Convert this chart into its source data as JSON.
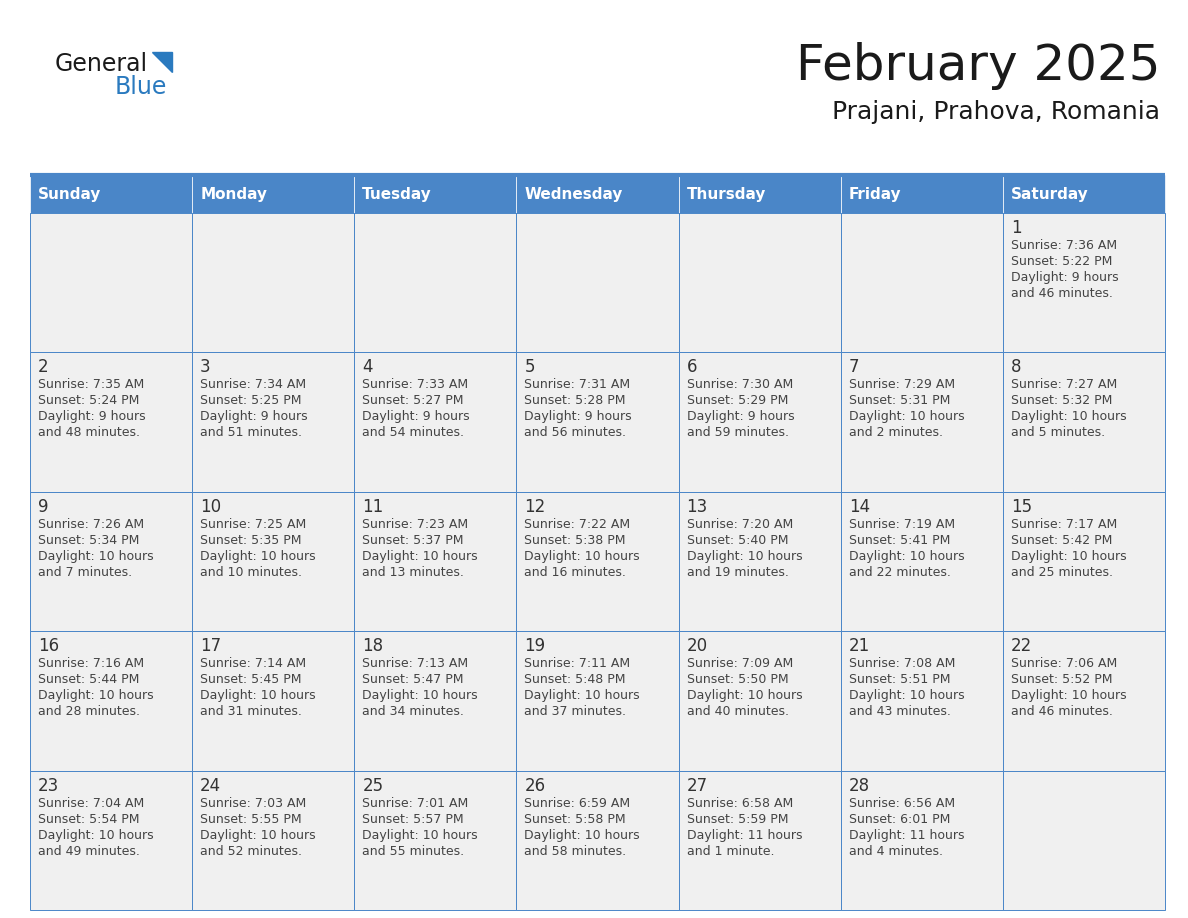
{
  "title": "February 2025",
  "subtitle": "Prajani, Prahova, Romania",
  "header_bg": "#4a86c8",
  "header_text": "#ffffff",
  "cell_bg": "#f0f0f0",
  "cell_border": "#4a86c8",
  "day_headers": [
    "Sunday",
    "Monday",
    "Tuesday",
    "Wednesday",
    "Thursday",
    "Friday",
    "Saturday"
  ],
  "days": [
    {
      "date": 1,
      "col": 6,
      "row": 0,
      "sunrise": "7:36 AM",
      "sunset": "5:22 PM",
      "daylight": "9 hours\nand 46 minutes."
    },
    {
      "date": 2,
      "col": 0,
      "row": 1,
      "sunrise": "7:35 AM",
      "sunset": "5:24 PM",
      "daylight": "9 hours\nand 48 minutes."
    },
    {
      "date": 3,
      "col": 1,
      "row": 1,
      "sunrise": "7:34 AM",
      "sunset": "5:25 PM",
      "daylight": "9 hours\nand 51 minutes."
    },
    {
      "date": 4,
      "col": 2,
      "row": 1,
      "sunrise": "7:33 AM",
      "sunset": "5:27 PM",
      "daylight": "9 hours\nand 54 minutes."
    },
    {
      "date": 5,
      "col": 3,
      "row": 1,
      "sunrise": "7:31 AM",
      "sunset": "5:28 PM",
      "daylight": "9 hours\nand 56 minutes."
    },
    {
      "date": 6,
      "col": 4,
      "row": 1,
      "sunrise": "7:30 AM",
      "sunset": "5:29 PM",
      "daylight": "9 hours\nand 59 minutes."
    },
    {
      "date": 7,
      "col": 5,
      "row": 1,
      "sunrise": "7:29 AM",
      "sunset": "5:31 PM",
      "daylight": "10 hours\nand 2 minutes."
    },
    {
      "date": 8,
      "col": 6,
      "row": 1,
      "sunrise": "7:27 AM",
      "sunset": "5:32 PM",
      "daylight": "10 hours\nand 5 minutes."
    },
    {
      "date": 9,
      "col": 0,
      "row": 2,
      "sunrise": "7:26 AM",
      "sunset": "5:34 PM",
      "daylight": "10 hours\nand 7 minutes."
    },
    {
      "date": 10,
      "col": 1,
      "row": 2,
      "sunrise": "7:25 AM",
      "sunset": "5:35 PM",
      "daylight": "10 hours\nand 10 minutes."
    },
    {
      "date": 11,
      "col": 2,
      "row": 2,
      "sunrise": "7:23 AM",
      "sunset": "5:37 PM",
      "daylight": "10 hours\nand 13 minutes."
    },
    {
      "date": 12,
      "col": 3,
      "row": 2,
      "sunrise": "7:22 AM",
      "sunset": "5:38 PM",
      "daylight": "10 hours\nand 16 minutes."
    },
    {
      "date": 13,
      "col": 4,
      "row": 2,
      "sunrise": "7:20 AM",
      "sunset": "5:40 PM",
      "daylight": "10 hours\nand 19 minutes."
    },
    {
      "date": 14,
      "col": 5,
      "row": 2,
      "sunrise": "7:19 AM",
      "sunset": "5:41 PM",
      "daylight": "10 hours\nand 22 minutes."
    },
    {
      "date": 15,
      "col": 6,
      "row": 2,
      "sunrise": "7:17 AM",
      "sunset": "5:42 PM",
      "daylight": "10 hours\nand 25 minutes."
    },
    {
      "date": 16,
      "col": 0,
      "row": 3,
      "sunrise": "7:16 AM",
      "sunset": "5:44 PM",
      "daylight": "10 hours\nand 28 minutes."
    },
    {
      "date": 17,
      "col": 1,
      "row": 3,
      "sunrise": "7:14 AM",
      "sunset": "5:45 PM",
      "daylight": "10 hours\nand 31 minutes."
    },
    {
      "date": 18,
      "col": 2,
      "row": 3,
      "sunrise": "7:13 AM",
      "sunset": "5:47 PM",
      "daylight": "10 hours\nand 34 minutes."
    },
    {
      "date": 19,
      "col": 3,
      "row": 3,
      "sunrise": "7:11 AM",
      "sunset": "5:48 PM",
      "daylight": "10 hours\nand 37 minutes."
    },
    {
      "date": 20,
      "col": 4,
      "row": 3,
      "sunrise": "7:09 AM",
      "sunset": "5:50 PM",
      "daylight": "10 hours\nand 40 minutes."
    },
    {
      "date": 21,
      "col": 5,
      "row": 3,
      "sunrise": "7:08 AM",
      "sunset": "5:51 PM",
      "daylight": "10 hours\nand 43 minutes."
    },
    {
      "date": 22,
      "col": 6,
      "row": 3,
      "sunrise": "7:06 AM",
      "sunset": "5:52 PM",
      "daylight": "10 hours\nand 46 minutes."
    },
    {
      "date": 23,
      "col": 0,
      "row": 4,
      "sunrise": "7:04 AM",
      "sunset": "5:54 PM",
      "daylight": "10 hours\nand 49 minutes."
    },
    {
      "date": 24,
      "col": 1,
      "row": 4,
      "sunrise": "7:03 AM",
      "sunset": "5:55 PM",
      "daylight": "10 hours\nand 52 minutes."
    },
    {
      "date": 25,
      "col": 2,
      "row": 4,
      "sunrise": "7:01 AM",
      "sunset": "5:57 PM",
      "daylight": "10 hours\nand 55 minutes."
    },
    {
      "date": 26,
      "col": 3,
      "row": 4,
      "sunrise": "6:59 AM",
      "sunset": "5:58 PM",
      "daylight": "10 hours\nand 58 minutes."
    },
    {
      "date": 27,
      "col": 4,
      "row": 4,
      "sunrise": "6:58 AM",
      "sunset": "5:59 PM",
      "daylight": "11 hours\nand 1 minute."
    },
    {
      "date": 28,
      "col": 5,
      "row": 4,
      "sunrise": "6:56 AM",
      "sunset": "6:01 PM",
      "daylight": "11 hours\nand 4 minutes."
    }
  ],
  "num_rows": 5,
  "logo_color1": "#1a1a1a",
  "logo_color2": "#2a7abf",
  "logo_triangle_color": "#2a7abf",
  "title_color": "#1a1a1a",
  "subtitle_color": "#1a1a1a",
  "date_text_color": "#333333",
  "info_text_color": "#444444",
  "title_fontsize": 36,
  "subtitle_fontsize": 18,
  "header_fontsize": 11,
  "date_fontsize": 12,
  "info_fontsize": 9
}
